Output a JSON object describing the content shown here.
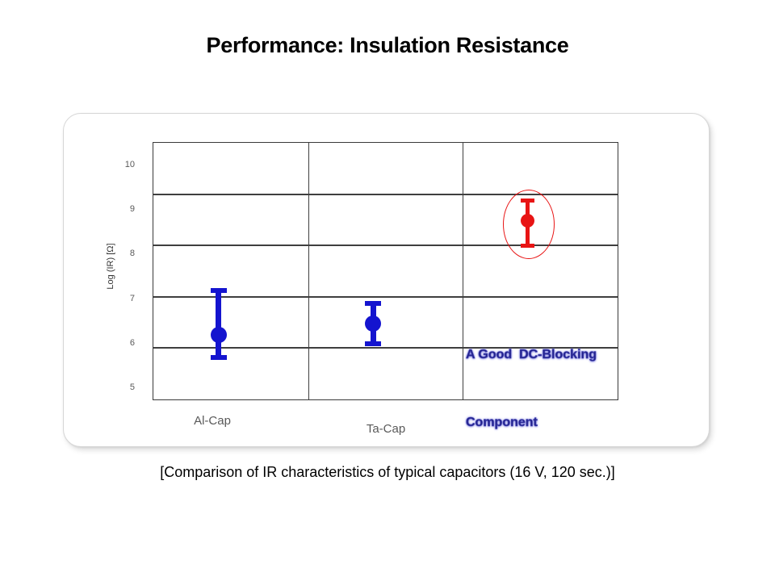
{
  "page": {
    "title": "Performance: Insulation Resistance",
    "caption": "[Comparison of IR characteristics of typical capacitors (16 V, 120 sec.)]"
  },
  "annotation": {
    "line1": "A Good  DC-Blocking",
    "line2": "Component",
    "text_color": "#23238c"
  },
  "colors": {
    "series_blue": "#1414cf",
    "series_red": "#e81414",
    "gridline": "#3f3f3f",
    "tick_text": "#595959"
  },
  "chart_data": {
    "type": "scatter",
    "title": "",
    "xlabel": "",
    "ylabel": "Log (IR) [Ω]",
    "ylim": [
      4.75,
      10.5
    ],
    "yticks": [
      10,
      9,
      8,
      7,
      6,
      5
    ],
    "grid": true,
    "categories": [
      "Al-Cap",
      "Ta-Cap",
      ""
    ],
    "series": [
      {
        "name": "Al-Cap",
        "center": 6.2,
        "low": 5.7,
        "high": 7.2,
        "color": "#1414cf",
        "highlighted": false
      },
      {
        "name": "Ta-Cap",
        "center": 6.45,
        "low": 6.0,
        "high": 6.9,
        "color": "#1414cf",
        "highlighted": false
      },
      {
        "name": "",
        "center": 8.75,
        "low": 8.2,
        "high": 9.2,
        "color": "#e81414",
        "highlighted": true
      }
    ],
    "annotations": [
      "A Good  DC-Blocking Component"
    ]
  }
}
